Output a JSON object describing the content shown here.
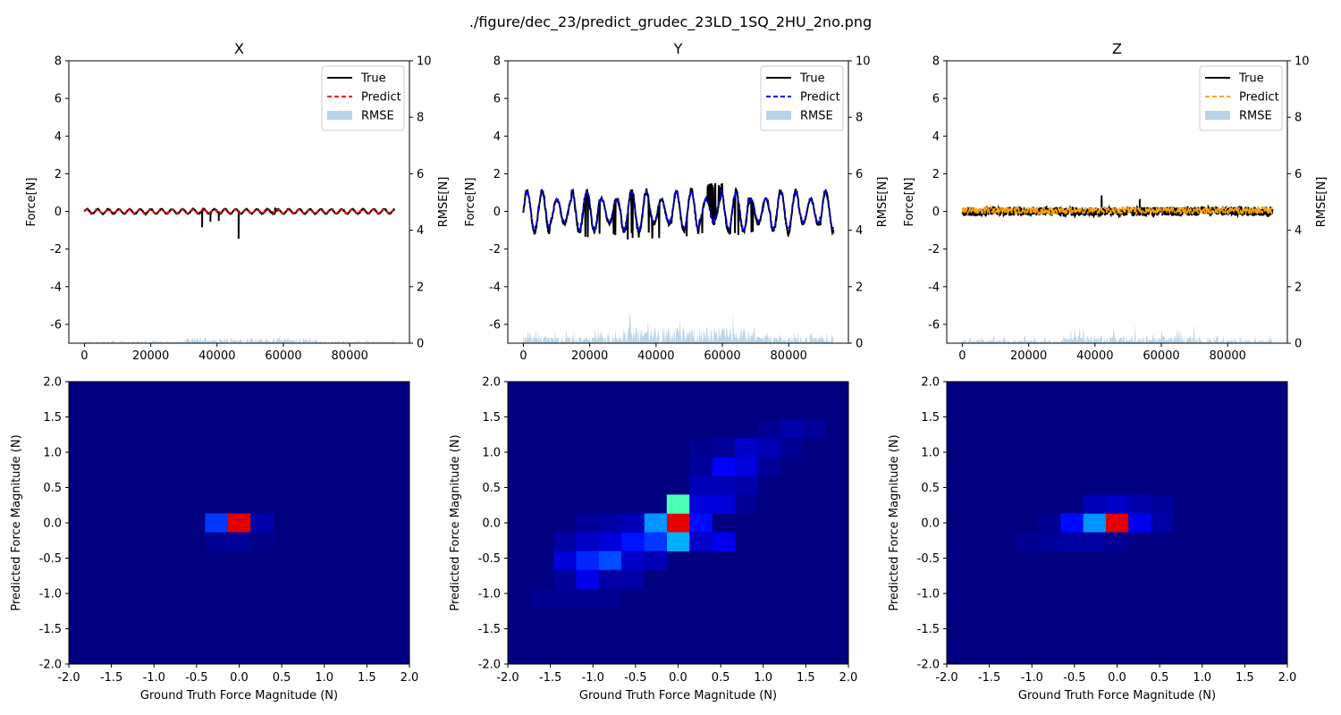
{
  "suptitle": "./figure/dec_23/predict_grudec_23LD_1SQ_2HU_2no.png",
  "chart_data": [
    {
      "type": "line",
      "title": "X",
      "ylabel": "Force[N]",
      "y2label": "RMSE[N]",
      "xlim": [
        -4700,
        98000
      ],
      "ylim": [
        -7,
        8
      ],
      "y2lim": [
        0,
        10
      ],
      "xticks": [
        "0",
        "20000",
        "40000",
        "60000",
        "80000"
      ],
      "yticks": [
        "-6",
        "-4",
        "-2",
        "0",
        "2",
        "4",
        "6",
        "8"
      ],
      "y2ticks": [
        "0",
        "2",
        "4",
        "6",
        "8",
        "10"
      ],
      "legend_placement": "top-right",
      "series": [
        {
          "name": "True",
          "color": "#000000",
          "style": "solid",
          "x_range": [
            0,
            93500
          ],
          "center": 0.0,
          "amplitude": 0.12,
          "oscillation_period": 3200,
          "spikes": [
            [
              35500,
              -0.85
            ],
            [
              38000,
              -0.55
            ],
            [
              40500,
              -0.5
            ],
            [
              46500,
              -1.45
            ]
          ],
          "bumps": [
            [
              57500,
              0.2
            ]
          ]
        },
        {
          "name": "Predict",
          "color": "#ff0000",
          "style": "dashed",
          "x_range": [
            0,
            93500
          ],
          "center": 0.0,
          "amplitude": 0.1,
          "oscillation_period": 3200
        },
        {
          "name": "RMSE",
          "color": "#b8d3e7",
          "style": "fill",
          "x_range": [
            0,
            93500
          ],
          "rmse_level": 0.18,
          "rmse_peak": 0.25
        }
      ]
    },
    {
      "type": "line",
      "title": "Y",
      "ylabel": "Force[N]",
      "y2label": "RMSE[N]",
      "xlim": [
        -4700,
        98000
      ],
      "ylim": [
        -7,
        8
      ],
      "y2lim": [
        0,
        10
      ],
      "xticks": [
        "0",
        "20000",
        "40000",
        "60000",
        "80000"
      ],
      "yticks": [
        "-6",
        "-4",
        "-2",
        "0",
        "2",
        "4",
        "6",
        "8"
      ],
      "y2ticks": [
        "0",
        "2",
        "4",
        "6",
        "8",
        "10"
      ],
      "legend_placement": "top-right",
      "series": [
        {
          "name": "True",
          "color": "#000000",
          "style": "solid",
          "x_range": [
            0,
            93500
          ],
          "center": 0.0,
          "amplitude": 1.1,
          "oscillation_period": 4500,
          "extra_low": -1.5,
          "extra_high": 1.5
        },
        {
          "name": "Predict",
          "color": "#0000ff",
          "style": "dashed",
          "x_range": [
            0,
            93500
          ],
          "center": 0.05,
          "amplitude": 1.0,
          "oscillation_period": 4500
        },
        {
          "name": "RMSE",
          "color": "#b8d3e7",
          "style": "fill",
          "x_range": [
            0,
            93500
          ],
          "rmse_level": 0.6,
          "rmse_peak": 1.2
        }
      ]
    },
    {
      "type": "line",
      "title": "Z",
      "ylabel": "Force[N]",
      "y2label": "RMSE[N]",
      "xlim": [
        -4700,
        98000
      ],
      "ylim": [
        -7,
        8
      ],
      "y2lim": [
        0,
        10
      ],
      "xticks": [
        "0",
        "20000",
        "40000",
        "60000",
        "80000"
      ],
      "yticks": [
        "-6",
        "-4",
        "-2",
        "0",
        "2",
        "4",
        "6",
        "8"
      ],
      "y2ticks": [
        "0",
        "2",
        "4",
        "6",
        "8",
        "10"
      ],
      "legend_placement": "top-right",
      "series": [
        {
          "name": "True",
          "color": "#000000",
          "style": "solid",
          "x_range": [
            0,
            93500
          ],
          "center": 0.0,
          "amplitude": 0.3,
          "oscillation_period": 2200,
          "spikes": [
            [
              42000,
              0.85
            ],
            [
              53500,
              0.65
            ]
          ]
        },
        {
          "name": "Predict",
          "color": "#ffa500",
          "style": "dashed",
          "x_range": [
            0,
            93500
          ],
          "center": 0.05,
          "amplitude": 0.25,
          "oscillation_period": 1500
        },
        {
          "name": "RMSE",
          "color": "#b8d3e7",
          "style": "fill",
          "x_range": [
            0,
            93500
          ],
          "rmse_level": 0.3,
          "rmse_peak": 0.7
        }
      ]
    },
    {
      "type": "heatmap",
      "xlabel": "Ground Truth Force Magnitude (N)",
      "ylabel": "Predicted Force Magnitude (N)",
      "xlim": [
        -2,
        2
      ],
      "ylim": [
        -2,
        2
      ],
      "xticks": [
        "-2.0",
        "-1.5",
        "-1.0",
        "-0.5",
        "0.0",
        "0.5",
        "1.0",
        "1.5",
        "2.0"
      ],
      "yticks": [
        "-2.0",
        "-1.5",
        "-1.0",
        "-0.5",
        "0.0",
        "0.5",
        "1.0",
        "1.5",
        "2.0"
      ],
      "bins": 15,
      "colormap": "jet",
      "cells": [
        [
          7,
          7,
          1.0
        ],
        [
          6,
          7,
          0.2
        ],
        [
          8,
          7,
          0.05
        ],
        [
          7,
          6,
          0.03
        ],
        [
          6,
          6,
          0.02
        ],
        [
          8,
          6,
          0.01
        ]
      ]
    },
    {
      "type": "heatmap",
      "xlabel": "Ground Truth Force Magnitude (N)",
      "ylabel": "Predicted Force Magnitude (N)",
      "xlim": [
        -2,
        2
      ],
      "ylim": [
        -2,
        2
      ],
      "xticks": [
        "-2.0",
        "-1.5",
        "-1.0",
        "-0.5",
        "0.0",
        "0.5",
        "1.0",
        "1.5",
        "2.0"
      ],
      "yticks": [
        "-2.0",
        "-1.5",
        "-1.0",
        "-0.5",
        "0.0",
        "0.5",
        "1.0",
        "1.5",
        "2.0"
      ],
      "bins": 15,
      "colormap": "jet",
      "cells": [
        [
          7,
          7,
          1.0
        ],
        [
          7,
          8,
          0.5
        ],
        [
          7,
          6,
          0.33
        ],
        [
          6,
          7,
          0.3
        ],
        [
          6,
          6,
          0.2
        ],
        [
          8,
          7,
          0.15
        ],
        [
          8,
          8,
          0.1
        ],
        [
          8,
          6,
          0.08
        ],
        [
          9,
          6,
          0.12
        ],
        [
          5,
          6,
          0.16
        ],
        [
          4,
          6,
          0.1
        ],
        [
          3,
          6,
          0.08
        ],
        [
          2,
          6,
          0.04
        ],
        [
          5,
          7,
          0.06
        ],
        [
          4,
          7,
          0.04
        ],
        [
          3,
          7,
          0.03
        ],
        [
          4,
          5,
          0.22
        ],
        [
          3,
          5,
          0.18
        ],
        [
          2,
          5,
          0.1
        ],
        [
          5,
          5,
          0.08
        ],
        [
          6,
          5,
          0.06
        ],
        [
          3,
          4,
          0.12
        ],
        [
          2,
          4,
          0.03
        ],
        [
          4,
          4,
          0.04
        ],
        [
          5,
          4,
          0.04
        ],
        [
          1,
          3,
          0.02
        ],
        [
          2,
          3,
          0.02
        ],
        [
          3,
          3,
          0.02
        ],
        [
          4,
          3,
          0.02
        ],
        [
          8,
          9,
          0.06
        ],
        [
          9,
          9,
          0.06
        ],
        [
          9,
          10,
          0.14
        ],
        [
          10,
          10,
          0.1
        ],
        [
          10,
          11,
          0.08
        ],
        [
          11,
          11,
          0.06
        ],
        [
          12,
          12,
          0.05
        ],
        [
          13,
          12,
          0.03
        ],
        [
          9,
          8,
          0.1
        ],
        [
          10,
          9,
          0.05
        ],
        [
          11,
          10,
          0.03
        ],
        [
          11,
          12,
          0.02
        ],
        [
          12,
          11,
          0.02
        ],
        [
          9,
          11,
          0.03
        ],
        [
          8,
          10,
          0.03
        ],
        [
          10,
          8,
          0.02
        ],
        [
          8,
          11,
          0.02
        ]
      ]
    },
    {
      "type": "heatmap",
      "xlabel": "Ground Truth Force Magnitude (N)",
      "ylabel": "Predicted Force Magnitude (N)",
      "xlim": [
        -2,
        2
      ],
      "ylim": [
        -2,
        2
      ],
      "xticks": [
        "-2.0",
        "-1.5",
        "-1.0",
        "-0.5",
        "0.0",
        "0.5",
        "1.0",
        "1.5",
        "2.0"
      ],
      "yticks": [
        "-2.0",
        "-1.5",
        "-1.0",
        "-0.5",
        "0.0",
        "0.5",
        "1.0",
        "1.5",
        "2.0"
      ],
      "bins": 15,
      "colormap": "jet",
      "cells": [
        [
          7,
          7,
          1.0
        ],
        [
          6,
          7,
          0.3
        ],
        [
          5,
          7,
          0.15
        ],
        [
          8,
          7,
          0.12
        ],
        [
          9,
          7,
          0.04
        ],
        [
          4,
          7,
          0.02
        ],
        [
          6,
          8,
          0.06
        ],
        [
          7,
          8,
          0.08
        ],
        [
          8,
          8,
          0.05
        ],
        [
          9,
          8,
          0.03
        ],
        [
          5,
          6,
          0.04
        ],
        [
          6,
          6,
          0.04
        ],
        [
          4,
          6,
          0.03
        ],
        [
          3,
          6,
          0.02
        ],
        [
          7,
          6,
          0.02
        ]
      ]
    }
  ]
}
